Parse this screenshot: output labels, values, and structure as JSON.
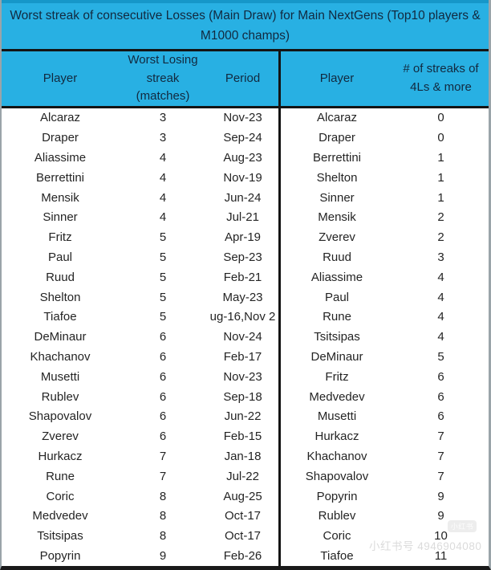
{
  "title": "Worst streak of consecutive Losses (Main Draw) for Main NextGens (Top10 players & M1000 champs)",
  "colors": {
    "header_bg": "#28b0e3",
    "header_border_dark": "#1697c9",
    "header_text": "#12293f",
    "body_text": "#242424",
    "grid_border": "#141414"
  },
  "left_table": {
    "headers": [
      "Player",
      "Worst Losing streak (matches)",
      "Period"
    ],
    "rows": [
      {
        "player": "Alcaraz",
        "streak": "3",
        "period": "Nov-23"
      },
      {
        "player": "Draper",
        "streak": "3",
        "period": "Sep-24"
      },
      {
        "player": "Aliassime",
        "streak": "4",
        "period": "Aug-23"
      },
      {
        "player": "Berrettini",
        "streak": "4",
        "period": "Nov-19"
      },
      {
        "player": "Mensik",
        "streak": "4",
        "period": "Jun-24"
      },
      {
        "player": "Sinner",
        "streak": "4",
        "period": "Jul-21"
      },
      {
        "player": "Fritz",
        "streak": "5",
        "period": "Apr-19"
      },
      {
        "player": "Paul",
        "streak": "5",
        "period": "Sep-23"
      },
      {
        "player": "Ruud",
        "streak": "5",
        "period": "Feb-21"
      },
      {
        "player": "Shelton",
        "streak": "5",
        "period": "May-23"
      },
      {
        "player": "Tiafoe",
        "streak": "5",
        "period": "ug-16,Nov 2"
      },
      {
        "player": "DeMinaur",
        "streak": "6",
        "period": "Nov-24"
      },
      {
        "player": "Khachanov",
        "streak": "6",
        "period": "Feb-17"
      },
      {
        "player": "Musetti",
        "streak": "6",
        "period": "Nov-23"
      },
      {
        "player": "Rublev",
        "streak": "6",
        "period": "Sep-18"
      },
      {
        "player": "Shapovalov",
        "streak": "6",
        "period": "Jun-22"
      },
      {
        "player": "Zverev",
        "streak": "6",
        "period": "Feb-15"
      },
      {
        "player": "Hurkacz",
        "streak": "7",
        "period": "Jan-18"
      },
      {
        "player": "Rune",
        "streak": "7",
        "period": "Jul-22"
      },
      {
        "player": "Coric",
        "streak": "8",
        "period": "Aug-25"
      },
      {
        "player": "Medvedev",
        "streak": "8",
        "period": "Oct-17"
      },
      {
        "player": "Tsitsipas",
        "streak": "8",
        "period": "Oct-17"
      },
      {
        "player": "Popyrin",
        "streak": "9",
        "period": "Feb-26"
      }
    ]
  },
  "right_table": {
    "headers": [
      "Player",
      "# of streaks of 4Ls & more"
    ],
    "rows": [
      {
        "player": "Alcaraz",
        "count": "0"
      },
      {
        "player": "Draper",
        "count": "0"
      },
      {
        "player": "Berrettini",
        "count": "1"
      },
      {
        "player": "Shelton",
        "count": "1"
      },
      {
        "player": "Sinner",
        "count": "1"
      },
      {
        "player": "Mensik",
        "count": "2"
      },
      {
        "player": "Zverev",
        "count": "2"
      },
      {
        "player": "Ruud",
        "count": "3"
      },
      {
        "player": "Aliassime",
        "count": "4"
      },
      {
        "player": "Paul",
        "count": "4"
      },
      {
        "player": "Rune",
        "count": "4"
      },
      {
        "player": "Tsitsipas",
        "count": "4"
      },
      {
        "player": "DeMinaur",
        "count": "5"
      },
      {
        "player": "Fritz",
        "count": "6"
      },
      {
        "player": "Medvedev",
        "count": "6"
      },
      {
        "player": "Musetti",
        "count": "6"
      },
      {
        "player": "Hurkacz",
        "count": "7"
      },
      {
        "player": "Khachanov",
        "count": "7"
      },
      {
        "player": "Shapovalov",
        "count": "7"
      },
      {
        "player": "Popyrin",
        "count": "9"
      },
      {
        "player": "Rublev",
        "count": "9"
      },
      {
        "player": "Coric",
        "count": "10"
      },
      {
        "player": "Tiafoe",
        "count": "11"
      }
    ]
  },
  "watermark": {
    "badge_label": "小红书",
    "id_text": "小红书号 4946904080"
  }
}
